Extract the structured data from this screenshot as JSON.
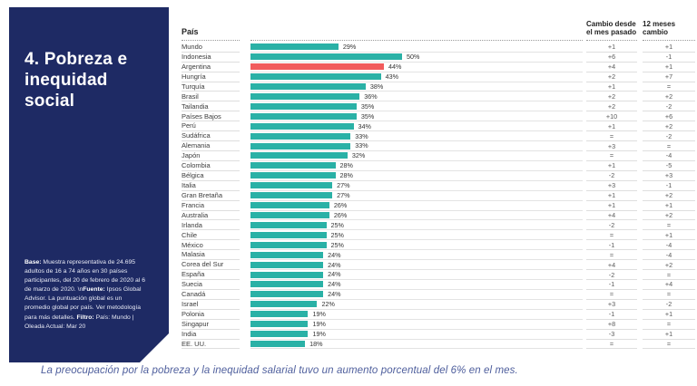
{
  "sidebar": {
    "title": "4. Pobreza e inequidad social",
    "accent_color": "#1e2a64",
    "note": {
      "base_label": "Base:",
      "base_text": " Muestra representativa de 24.695 adultos de 16 a 74 años en 30 países participantes, del 20 de febrero de 2020 al 6 de marzo de 2020. \\n",
      "fuente_label": "Fuente:",
      "fuente_text": " Ipsos Global Advisor. La puntuación global es un promedio global por país. Ver metodología para más detalles. ",
      "filtro_label": "Filtro:",
      "filtro_text": " País: Mundo | Oleada Actual: Mar 20"
    }
  },
  "chart_data": {
    "type": "bar",
    "orientation": "horizontal",
    "country_column_header": "País",
    "change_month_header": "Cambio desde el mes pasado",
    "change_year_header": "12 meses cambio",
    "unit": "%",
    "xlim": [
      0,
      55
    ],
    "grid": false,
    "bar_color": "#2ab1a6",
    "highlight_color": "#f15b5c",
    "highlighted_country": "Argentina",
    "rows": [
      {
        "country": "Mundo",
        "value": 29,
        "change_month": "+1",
        "change_year": "+1"
      },
      {
        "country": "Indonesia",
        "value": 50,
        "change_month": "+6",
        "change_year": "-1"
      },
      {
        "country": "Argentina",
        "value": 44,
        "change_month": "+4",
        "change_year": "+1"
      },
      {
        "country": "Hungría",
        "value": 43,
        "change_month": "+2",
        "change_year": "+7"
      },
      {
        "country": "Turquía",
        "value": 38,
        "change_month": "+1",
        "change_year": "="
      },
      {
        "country": "Brasil",
        "value": 36,
        "change_month": "+2",
        "change_year": "+2"
      },
      {
        "country": "Tailandia",
        "value": 35,
        "change_month": "+2",
        "change_year": "-2"
      },
      {
        "country": "Países Bajos",
        "value": 35,
        "change_month": "+10",
        "change_year": "+6"
      },
      {
        "country": "Perú",
        "value": 34,
        "change_month": "+1",
        "change_year": "+2"
      },
      {
        "country": "Sudáfrica",
        "value": 33,
        "change_month": "=",
        "change_year": "-2"
      },
      {
        "country": "Alemania",
        "value": 33,
        "change_month": "+3",
        "change_year": "="
      },
      {
        "country": "Japón",
        "value": 32,
        "change_month": "=",
        "change_year": "-4"
      },
      {
        "country": "Colombia",
        "value": 28,
        "change_month": "+1",
        "change_year": "-5"
      },
      {
        "country": "Bélgica",
        "value": 28,
        "change_month": "-2",
        "change_year": "+3"
      },
      {
        "country": "Italia",
        "value": 27,
        "change_month": "+3",
        "change_year": "-1"
      },
      {
        "country": "Gran Bretaña",
        "value": 27,
        "change_month": "+1",
        "change_year": "+2"
      },
      {
        "country": "Francia",
        "value": 26,
        "change_month": "+1",
        "change_year": "+1"
      },
      {
        "country": "Australia",
        "value": 26,
        "change_month": "+4",
        "change_year": "+2"
      },
      {
        "country": "Irlanda",
        "value": 25,
        "change_month": "-2",
        "change_year": "="
      },
      {
        "country": "Chile",
        "value": 25,
        "change_month": "=",
        "change_year": "+1"
      },
      {
        "country": "México",
        "value": 25,
        "change_month": "-1",
        "change_year": "-4"
      },
      {
        "country": "Malasia",
        "value": 24,
        "change_month": "=",
        "change_year": "-4"
      },
      {
        "country": "Corea del Sur",
        "value": 24,
        "change_month": "+4",
        "change_year": "+2"
      },
      {
        "country": "España",
        "value": 24,
        "change_month": "-2",
        "change_year": "="
      },
      {
        "country": "Suecia",
        "value": 24,
        "change_month": "-1",
        "change_year": "+4"
      },
      {
        "country": "Canadá",
        "value": 24,
        "change_month": "=",
        "change_year": "="
      },
      {
        "country": "Israel",
        "value": 22,
        "change_month": "+3",
        "change_year": "-2"
      },
      {
        "country": "Polonia",
        "value": 19,
        "change_month": "-1",
        "change_year": "+1"
      },
      {
        "country": "Singapur",
        "value": 19,
        "change_month": "+8",
        "change_year": "="
      },
      {
        "country": "India",
        "value": 19,
        "change_month": "-3",
        "change_year": "+1"
      },
      {
        "country": "EE. UU.",
        "value": 18,
        "change_month": "=",
        "change_year": "="
      }
    ]
  },
  "caption": "La preocupación por la pobreza y la inequidad salarial tuvo un aumento porcentual del 6% en el mes."
}
